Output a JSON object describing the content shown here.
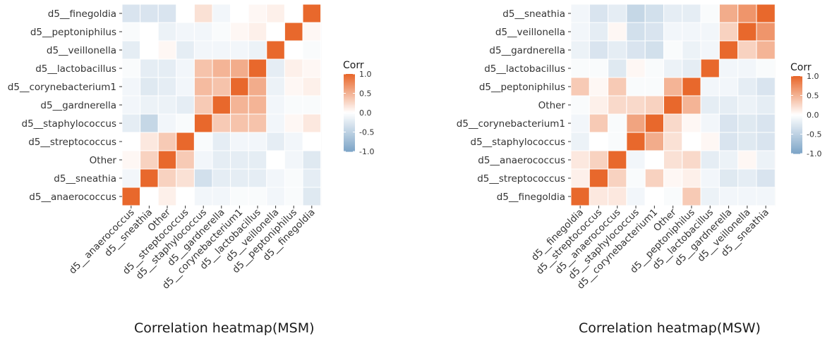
{
  "chart_data": [
    {
      "type": "heatmap",
      "caption": "Correlation heatmap(MSM)",
      "x_categories": [
        "d5__anaerococcus",
        "d5__sneathia",
        "Other",
        "d5__streptococcus",
        "d5__staphylococcus",
        "d5__gardnerella",
        "d5__corynebacterium1",
        "d5__lactobacillus",
        "d5__veillonella",
        "d5__peptoniphilus",
        "d5__finegoldia"
      ],
      "y_categories_top_to_bottom": [
        "d5__finegoldia",
        "d5__peptoniphilus",
        "d5__veillonella",
        "d5__lactobacillus",
        "d5__corynebacterium1",
        "d5__gardnerella",
        "d5__staphylococcus",
        "d5__streptococcus",
        "Other",
        "d5__sneathia",
        "d5__anaerococcus"
      ],
      "values_rows_top_to_bottom": [
        [
          -0.3,
          -0.3,
          -0.3,
          0.0,
          0.2,
          -0.1,
          0.0,
          0.05,
          0.1,
          0.0,
          1.0
        ],
        [
          -0.05,
          0.0,
          -0.15,
          -0.1,
          -0.1,
          -0.05,
          0.05,
          0.1,
          0.0,
          1.0,
          0.05
        ],
        [
          -0.2,
          0.0,
          0.05,
          -0.2,
          -0.1,
          -0.1,
          -0.1,
          -0.15,
          1.0,
          0.0,
          -0.05
        ],
        [
          -0.05,
          -0.2,
          -0.2,
          -0.1,
          0.4,
          0.5,
          0.55,
          1.0,
          -0.2,
          0.1,
          0.05
        ],
        [
          -0.1,
          -0.25,
          -0.2,
          -0.1,
          0.45,
          0.4,
          1.0,
          0.55,
          -0.15,
          0.05,
          0.1
        ],
        [
          -0.1,
          -0.15,
          -0.15,
          -0.2,
          0.35,
          1.0,
          0.5,
          0.5,
          -0.1,
          -0.05,
          -0.05
        ],
        [
          -0.2,
          -0.45,
          -0.1,
          -0.05,
          1.0,
          0.35,
          0.4,
          0.4,
          -0.1,
          0.05,
          0.15
        ],
        [
          0.0,
          0.15,
          0.35,
          1.0,
          -0.05,
          -0.2,
          -0.1,
          -0.1,
          -0.2,
          -0.1,
          0.0
        ],
        [
          0.05,
          0.3,
          1.0,
          0.35,
          -0.1,
          -0.2,
          -0.2,
          -0.2,
          0.0,
          -0.1,
          -0.25
        ],
        [
          -0.1,
          1.0,
          0.3,
          0.2,
          -0.35,
          -0.2,
          -0.2,
          -0.2,
          -0.1,
          -0.05,
          -0.2
        ],
        [
          1.0,
          0.0,
          0.1,
          0.0,
          -0.1,
          -0.1,
          -0.05,
          -0.05,
          -0.1,
          -0.05,
          -0.25
        ]
      ],
      "legend": {
        "title": "Corr",
        "ticks": [
          "1.0",
          "0.5",
          "0.0",
          "-0.5",
          "-1.0"
        ],
        "range": [
          -1.0,
          1.0
        ]
      }
    },
    {
      "type": "heatmap",
      "caption": "Correlation heatmap(MSW)",
      "x_categories": [
        "d5__finegoldia",
        "d5__streptococcus",
        "d5__anaerococcus",
        "d5__staphylococcus",
        "d5__corynebacterium1",
        "Other",
        "d5__peptoniphilus",
        "d5__lactobacillus",
        "d5__gardnerella",
        "d5__veillonella",
        "d5__sneathia"
      ],
      "y_categories_top_to_bottom": [
        "d5__sneathia",
        "d5__veillonella",
        "d5__gardnerella",
        "d5__lactobacillus",
        "d5__peptoniphilus",
        "Other",
        "d5__corynebacterium1",
        "d5__staphylococcus",
        "d5__anaerococcus",
        "d5__streptococcus",
        "d5__finegoldia"
      ],
      "values_rows_top_to_bottom": [
        [
          -0.1,
          -0.3,
          -0.2,
          -0.45,
          -0.35,
          -0.2,
          -0.2,
          -0.05,
          0.55,
          0.7,
          1.0
        ],
        [
          -0.1,
          -0.2,
          0.05,
          -0.35,
          -0.3,
          -0.1,
          -0.1,
          -0.1,
          0.3,
          1.0,
          0.7
        ],
        [
          -0.15,
          -0.3,
          -0.2,
          -0.3,
          -0.35,
          -0.05,
          -0.15,
          -0.1,
          1.0,
          0.3,
          0.5
        ],
        [
          -0.05,
          -0.05,
          -0.25,
          0.05,
          -0.05,
          -0.15,
          -0.2,
          1.0,
          -0.1,
          -0.1,
          -0.05
        ],
        [
          0.35,
          0.05,
          0.35,
          -0.05,
          -0.05,
          0.5,
          1.0,
          -0.1,
          -0.1,
          -0.2,
          -0.3
        ],
        [
          -0.05,
          0.1,
          0.25,
          0.25,
          0.3,
          1.0,
          0.5,
          -0.2,
          -0.2,
          -0.15,
          -0.2
        ],
        [
          -0.1,
          0.35,
          -0.05,
          0.6,
          1.0,
          0.25,
          0.05,
          -0.1,
          -0.3,
          -0.25,
          -0.3
        ],
        [
          -0.15,
          0.0,
          -0.05,
          1.0,
          0.55,
          0.2,
          0.0,
          0.05,
          -0.3,
          -0.25,
          -0.3
        ],
        [
          0.15,
          0.3,
          1.0,
          -0.1,
          0.0,
          0.2,
          0.25,
          -0.2,
          -0.15,
          0.05,
          -0.15
        ],
        [
          0.1,
          1.0,
          0.3,
          -0.05,
          0.3,
          0.05,
          0.1,
          -0.1,
          -0.25,
          -0.2,
          -0.3
        ],
        [
          1.0,
          0.15,
          0.15,
          -0.1,
          0.0,
          -0.05,
          0.35,
          -0.15,
          -0.1,
          -0.1,
          -0.1
        ]
      ],
      "legend": {
        "title": "Corr",
        "ticks": [
          "1.0",
          "0.5",
          "0.0",
          "-0.5",
          "-1.0"
        ],
        "range": [
          -1.0,
          1.0
        ]
      }
    }
  ],
  "colors": {
    "high": "#e8682c",
    "mid": "#ffffff",
    "low": "#7fa6c8",
    "panel_border": "#d0d0d0",
    "cell_gap": "#ffffff"
  }
}
